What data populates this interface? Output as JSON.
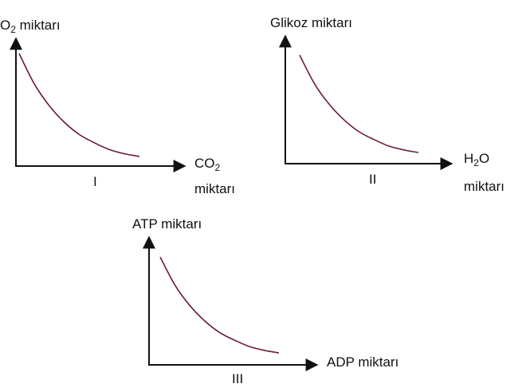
{
  "chart_data": [
    {
      "type": "line",
      "panel": "I",
      "ylabel": {
        "base": "O",
        "sub": "2",
        "rest": " miktarı"
      },
      "xlabel": {
        "base": "CO",
        "sub": "2",
        "line2": "miktarı"
      },
      "series": [
        {
          "values": [
            1.0,
            0.78,
            0.62,
            0.5,
            0.41,
            0.35,
            0.3,
            0.27,
            0.25
          ]
        }
      ],
      "x": [
        0,
        1,
        2,
        3,
        4,
        5,
        6,
        7,
        8
      ],
      "curve_color": "#6b1a3a"
    },
    {
      "type": "line",
      "panel": "II",
      "ylabel": {
        "base": "Glikoz miktarı"
      },
      "xlabel": {
        "base": "H",
        "sub": "2",
        "rest": "O",
        "line2": "miktarı"
      },
      "series": [
        {
          "values": [
            1.0,
            0.78,
            0.62,
            0.5,
            0.41,
            0.35,
            0.3,
            0.27,
            0.25
          ]
        }
      ],
      "x": [
        0,
        1,
        2,
        3,
        4,
        5,
        6,
        7,
        8
      ],
      "curve_color": "#6b1a3a"
    },
    {
      "type": "line",
      "panel": "III",
      "ylabel": {
        "base": "ATP miktarı"
      },
      "xlabel": {
        "base": "ADP miktarı"
      },
      "series": [
        {
          "values": [
            1.0,
            0.78,
            0.62,
            0.5,
            0.41,
            0.35,
            0.3,
            0.27,
            0.25
          ]
        }
      ],
      "x": [
        0,
        1,
        2,
        3,
        4,
        5,
        6,
        7,
        8
      ],
      "curve_color": "#6b1a3a"
    }
  ]
}
